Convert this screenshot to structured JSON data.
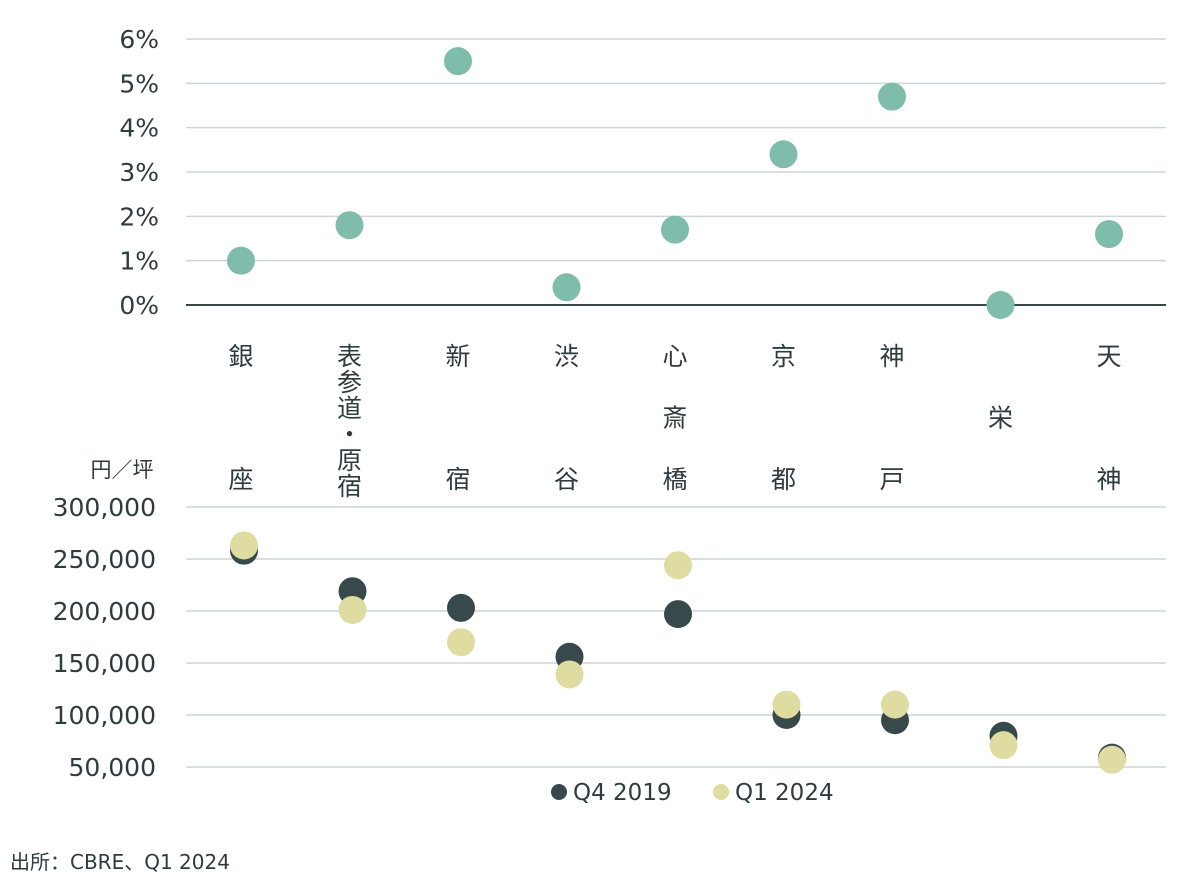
{
  "chart_data": [
    {
      "type": "scatter",
      "categories": [
        "銀座",
        "表参道・原宿",
        "新宿",
        "渋谷",
        "心斎橋",
        "京都",
        "神戸",
        "栄",
        "天神"
      ],
      "yticks": [
        "6%",
        "5%",
        "4%",
        "3%",
        "2%",
        "1%",
        "0%"
      ],
      "ylim": [
        0,
        6
      ],
      "series": [
        {
          "values": [
            1.0,
            1.8,
            5.5,
            0.4,
            1.7,
            3.4,
            4.7,
            0.0,
            1.6
          ]
        }
      ],
      "grid": true
    },
    {
      "type": "scatter",
      "unit": "円／坪",
      "categories": [
        "銀座",
        "表参道・原宿",
        "新宿",
        "渋谷",
        "心斎橋",
        "京都",
        "神戸",
        "栄",
        "天神"
      ],
      "yticks": [
        "300,000",
        "250,000",
        "200,000",
        "150,000",
        "100,000",
        "50,000"
      ],
      "ylim": [
        50000,
        300000
      ],
      "series": [
        {
          "name": "Q4 2019",
          "values": [
            258000,
            219000,
            203000,
            156000,
            197000,
            100000,
            95000,
            80000,
            59000
          ]
        },
        {
          "name": "Q1 2024",
          "values": [
            263000,
            201000,
            170000,
            139000,
            244000,
            110000,
            110000,
            71000,
            57000
          ]
        }
      ],
      "grid": true,
      "legend": "bottom-center"
    }
  ],
  "colors": {
    "growth": "#7fbcab",
    "q4_2019": "#38494b",
    "q1_2024": "#dedca0",
    "grid": "#cdd6d6",
    "baseline": "#3b474a",
    "text": "#2f3b3f"
  },
  "source_note": "出所：CBRE、Q1 2024"
}
